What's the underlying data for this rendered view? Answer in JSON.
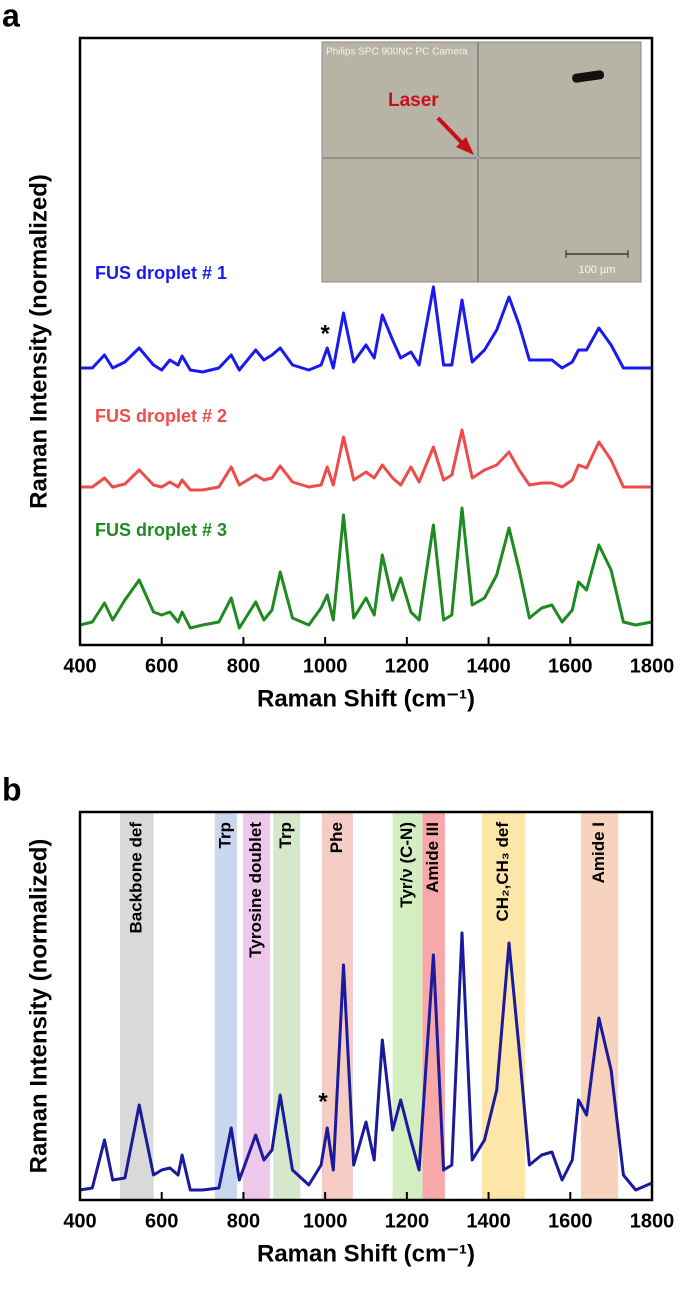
{
  "chart_data": [
    {
      "type": "line",
      "panel": "a",
      "ylabel": "Raman Intensity (normalized)",
      "xlabel": "Raman Shift (cm⁻¹)",
      "xlim": [
        400,
        1800
      ],
      "xticks": [
        400,
        600,
        800,
        1000,
        1200,
        1400,
        1600,
        1800
      ],
      "ylim": [
        0,
        607
      ],
      "x": [
        400,
        430,
        460,
        480,
        510,
        545,
        580,
        600,
        620,
        640,
        650,
        670,
        700,
        740,
        770,
        790,
        830,
        850,
        870,
        890,
        920,
        960,
        990,
        1005,
        1020,
        1045,
        1070,
        1100,
        1120,
        1140,
        1165,
        1185,
        1210,
        1230,
        1265,
        1290,
        1310,
        1335,
        1360,
        1390,
        1420,
        1450,
        1475,
        1500,
        1530,
        1555,
        1580,
        1605,
        1620,
        1640,
        1670,
        1700,
        1730,
        1760,
        1800
      ],
      "series": [
        {
          "name": "FUS droplet # 1",
          "color": "#1a1aee",
          "values": [
            277,
            277,
            290,
            277,
            283,
            297,
            280,
            275,
            285,
            280,
            289,
            275,
            273,
            277,
            290,
            275,
            295,
            285,
            290,
            297,
            280,
            275,
            280,
            297,
            277,
            332,
            283,
            300,
            287,
            330,
            305,
            287,
            293,
            280,
            358,
            280,
            280,
            345,
            283,
            295,
            315,
            348,
            320,
            285,
            285,
            285,
            277,
            283,
            295,
            295,
            317,
            300,
            277,
            277,
            277
          ]
        },
        {
          "name": "FUS droplet # 2",
          "color": "#ee4b4b",
          "values": [
            158,
            158,
            167,
            158,
            161,
            175,
            160,
            158,
            163,
            158,
            165,
            155,
            155,
            158,
            178,
            160,
            170,
            165,
            167,
            179,
            163,
            158,
            160,
            178,
            160,
            208,
            165,
            173,
            167,
            180,
            167,
            160,
            178,
            163,
            198,
            165,
            170,
            215,
            167,
            175,
            180,
            193,
            175,
            160,
            162,
            162,
            158,
            165,
            180,
            177,
            203,
            185,
            158,
            158,
            158
          ]
        },
        {
          "name": "FUS droplet # 3",
          "color": "#1f8a1f",
          "values": [
            20,
            23,
            42,
            25,
            45,
            65,
            33,
            30,
            33,
            23,
            33,
            17,
            20,
            23,
            47,
            17,
            43,
            25,
            35,
            73,
            27,
            20,
            37,
            50,
            25,
            130,
            27,
            47,
            30,
            90,
            45,
            67,
            33,
            25,
            120,
            25,
            30,
            137,
            40,
            47,
            70,
            117,
            75,
            27,
            37,
            40,
            23,
            35,
            63,
            55,
            100,
            75,
            23,
            20,
            23
          ]
        }
      ],
      "annotations": [
        {
          "text": "*",
          "x": 1000,
          "y": 310
        }
      ],
      "inset": {
        "caption": "Philips SPC 900NC PC Camera",
        "label": "Laser",
        "scale_bar": "100 µm"
      }
    },
    {
      "type": "line",
      "panel": "b",
      "ylabel": "Raman Intensity (normalized)",
      "xlabel": "Raman Shift (cm⁻¹)",
      "xlim": [
        400,
        1800
      ],
      "xticks": [
        400,
        600,
        800,
        1000,
        1200,
        1400,
        1600,
        1800
      ],
      "ylim": [
        0,
        388
      ],
      "x": [
        400,
        430,
        460,
        480,
        510,
        545,
        580,
        600,
        620,
        640,
        650,
        670,
        700,
        740,
        770,
        790,
        830,
        850,
        870,
        890,
        920,
        960,
        990,
        1005,
        1020,
        1045,
        1070,
        1100,
        1120,
        1140,
        1165,
        1185,
        1210,
        1230,
        1265,
        1290,
        1310,
        1335,
        1360,
        1390,
        1420,
        1450,
        1475,
        1500,
        1530,
        1555,
        1580,
        1605,
        1620,
        1640,
        1670,
        1700,
        1730,
        1760,
        1800
      ],
      "series": [
        {
          "color": "#1a1a9a",
          "values": [
            10,
            12,
            60,
            20,
            22,
            95,
            25,
            30,
            32,
            25,
            45,
            10,
            10,
            12,
            72,
            20,
            65,
            40,
            50,
            105,
            30,
            15,
            35,
            72,
            30,
            235,
            35,
            78,
            40,
            160,
            70,
            100,
            60,
            30,
            245,
            30,
            35,
            267,
            40,
            60,
            110,
            257,
            150,
            35,
            45,
            48,
            20,
            40,
            100,
            85,
            182,
            130,
            25,
            10,
            17
          ]
        }
      ],
      "annotations": [
        {
          "text": "*",
          "x": 995,
          "y": 97
        }
      ],
      "bands": [
        {
          "label": "Backbone def",
          "start": 498,
          "end": 580,
          "color": "#d9d9d9"
        },
        {
          "label": "Trp",
          "start": 730,
          "end": 784,
          "color": "#c9d8ee"
        },
        {
          "label": "Tyrosine doublet",
          "start": 799,
          "end": 865,
          "color": "#eec8ea"
        },
        {
          "label": "Trp",
          "start": 873,
          "end": 939,
          "color": "#d6e8cc"
        },
        {
          "label": "Phe",
          "start": 992,
          "end": 1068,
          "color": "#f5ccc4"
        },
        {
          "label": "Tyr/ν (C-N)",
          "start": 1165,
          "end": 1238,
          "color": "#d3eec0"
        },
        {
          "label": "Amide III",
          "start": 1238,
          "end": 1293,
          "color": "#f7a8a8"
        },
        {
          "label": "CH₂,CH₃ def",
          "start": 1384,
          "end": 1489,
          "color": "#fde6a8"
        },
        {
          "label": "Amide I",
          "start": 1626,
          "end": 1717,
          "color": "#f7d2bd"
        }
      ]
    }
  ]
}
